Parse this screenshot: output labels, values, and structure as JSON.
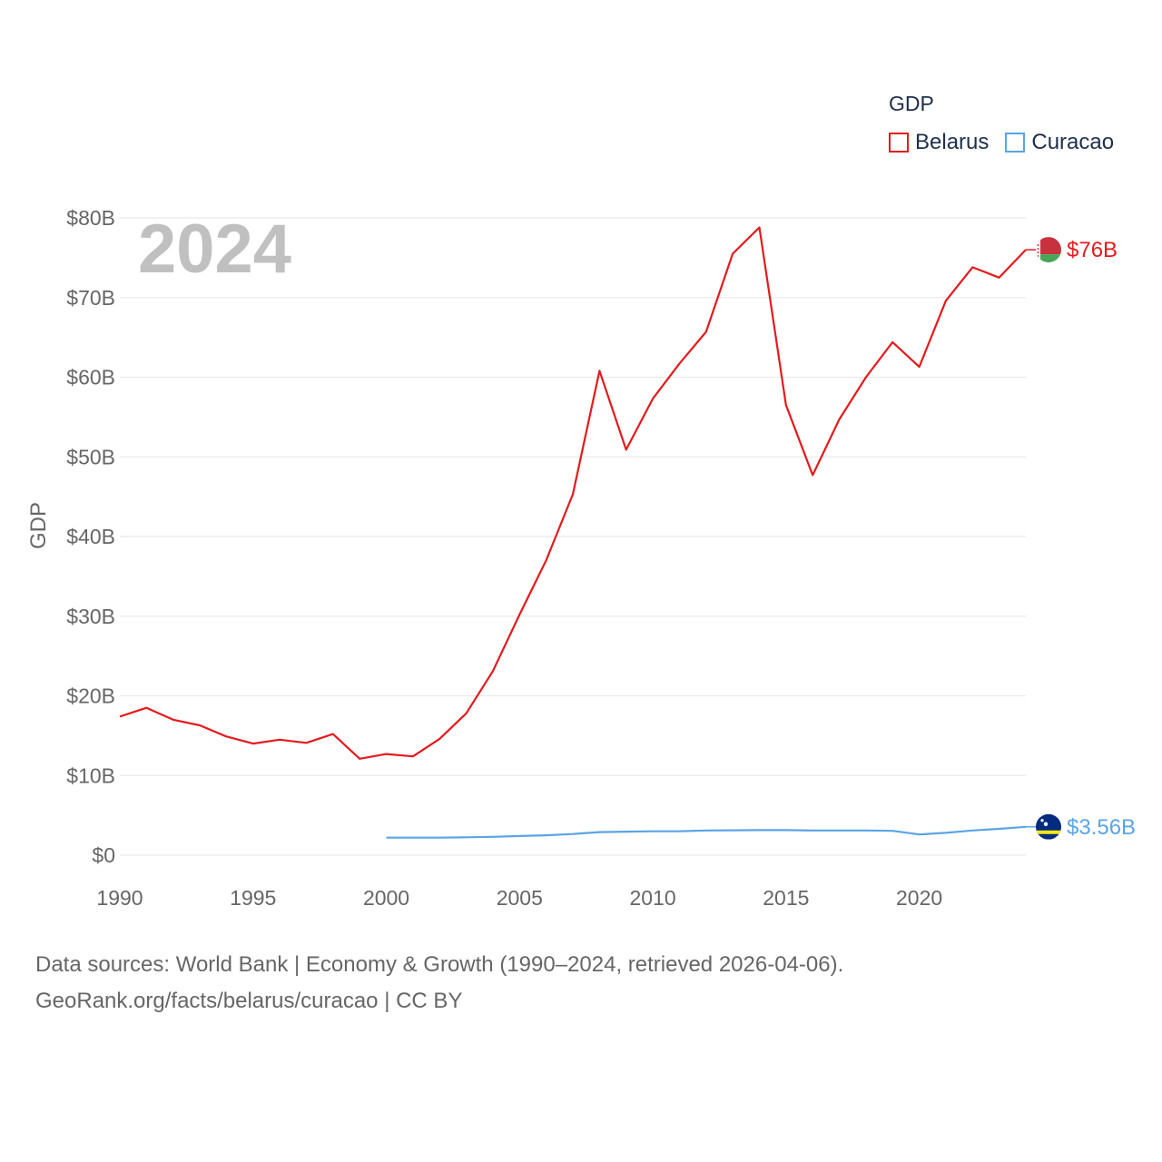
{
  "legend": {
    "title": "GDP",
    "items": [
      {
        "label": "Belarus",
        "color": "#e41a1c"
      },
      {
        "label": "Curacao",
        "color": "#5ba4e5"
      }
    ]
  },
  "footer": {
    "line1": "Data sources: World Bank | Economy & Growth (1990–2024, retrieved 2026-04-06).",
    "line2": "GeoRank.org/facts/belarus/curacao | CC BY"
  },
  "chart_data": {
    "type": "line",
    "title": "",
    "year_label": "2024",
    "xlabel": "",
    "ylabel": "GDP",
    "xlim": [
      1990,
      2024
    ],
    "ylim": [
      0,
      80
    ],
    "x_ticks": [
      1990,
      1995,
      2000,
      2005,
      2010,
      2015,
      2020
    ],
    "x_tick_labels": [
      "1990",
      "1995",
      "2000",
      "2005",
      "2010",
      "2015",
      "2020"
    ],
    "y_ticks": [
      0,
      10,
      20,
      30,
      40,
      50,
      60,
      70,
      80
    ],
    "y_tick_labels": [
      "$0",
      "$10B",
      "$20B",
      "$30B",
      "$40B",
      "$50B",
      "$60B",
      "$70B",
      "$80B"
    ],
    "grid": true,
    "series": [
      {
        "name": "Belarus",
        "color": "#e41a1c",
        "end_label": "$76B",
        "x": [
          1990,
          1991,
          1992,
          1993,
          1994,
          1995,
          1996,
          1997,
          1998,
          1999,
          2000,
          2001,
          2002,
          2003,
          2004,
          2005,
          2006,
          2007,
          2008,
          2009,
          2010,
          2011,
          2012,
          2013,
          2014,
          2015,
          2016,
          2017,
          2018,
          2019,
          2020,
          2021,
          2022,
          2023,
          2024
        ],
        "values": [
          17.4,
          18.5,
          17.0,
          16.3,
          14.9,
          14.0,
          14.5,
          14.1,
          15.2,
          12.1,
          12.7,
          12.4,
          14.6,
          17.8,
          23.1,
          30.2,
          37.0,
          45.3,
          60.8,
          50.9,
          57.3,
          61.7,
          65.7,
          75.5,
          78.8,
          56.5,
          47.7,
          54.7,
          60.0,
          64.4,
          61.3,
          69.6,
          73.8,
          72.5,
          76.0
        ]
      },
      {
        "name": "Curacao",
        "color": "#5ba4e5",
        "end_label": "$3.56B",
        "x": [
          2000,
          2001,
          2002,
          2003,
          2004,
          2005,
          2006,
          2007,
          2008,
          2009,
          2010,
          2011,
          2012,
          2013,
          2014,
          2015,
          2016,
          2017,
          2018,
          2019,
          2020,
          2021,
          2022,
          2023,
          2024
        ],
        "values": [
          2.2,
          2.2,
          2.2,
          2.25,
          2.3,
          2.4,
          2.5,
          2.65,
          2.9,
          2.95,
          3.0,
          3.0,
          3.1,
          3.12,
          3.15,
          3.15,
          3.1,
          3.1,
          3.1,
          3.05,
          2.6,
          2.8,
          3.1,
          3.3,
          3.56
        ]
      }
    ]
  }
}
